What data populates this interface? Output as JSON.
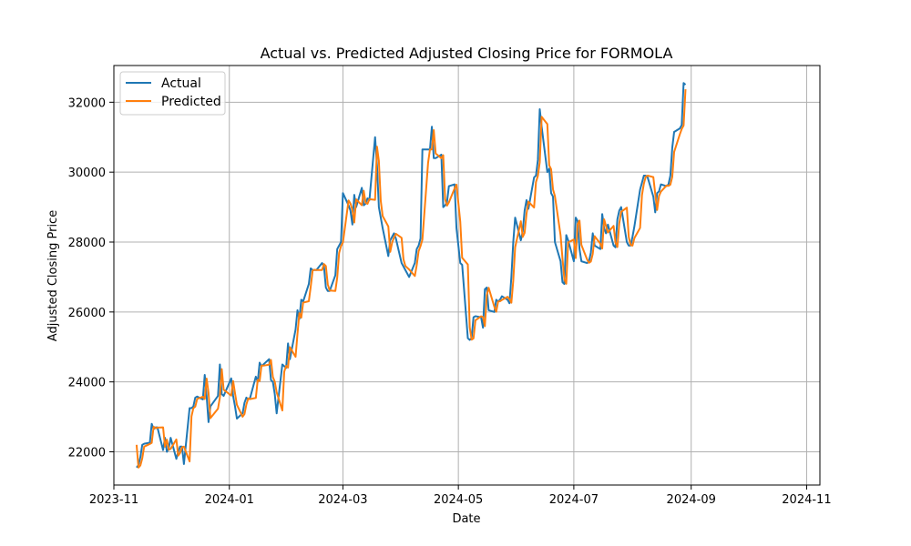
{
  "chart_data": {
    "type": "line",
    "title": "Actual vs. Predicted Adjusted Closing Price for FORMOLA",
    "xlabel": "Date",
    "ylabel": "Adjusted Closing Price",
    "xlim": [
      "2023-11-01",
      "2024-11-08"
    ],
    "ylim": [
      21050,
      33050
    ],
    "x_ticks": [
      "2023-11",
      "2024-01",
      "2024-03",
      "2024-05",
      "2024-07",
      "2024-09",
      "2024-11"
    ],
    "y_ticks": [
      22000,
      24000,
      26000,
      28000,
      30000,
      32000
    ],
    "grid": true,
    "legend_position": "top-left",
    "series": [
      {
        "name": "Actual",
        "color": "#1f77b4",
        "points": [
          [
            "2023-11-13",
            21550
          ],
          [
            "2023-11-14",
            21620
          ],
          [
            "2023-11-15",
            21850
          ],
          [
            "2023-11-16",
            22200
          ],
          [
            "2023-11-17",
            22230
          ],
          [
            "2023-11-20",
            22260
          ],
          [
            "2023-11-21",
            22800
          ],
          [
            "2023-11-22",
            22650
          ],
          [
            "2023-11-23",
            22700
          ],
          [
            "2023-11-24",
            22700
          ],
          [
            "2023-11-27",
            22050
          ],
          [
            "2023-11-28",
            22400
          ],
          [
            "2023-11-29",
            22000
          ],
          [
            "2023-11-30",
            22100
          ],
          [
            "2023-12-01",
            22400
          ],
          [
            "2023-12-04",
            21800
          ],
          [
            "2023-12-05",
            22000
          ],
          [
            "2023-12-06",
            22150
          ],
          [
            "2023-12-07",
            22150
          ],
          [
            "2023-12-08",
            21650
          ],
          [
            "2023-12-11",
            23250
          ],
          [
            "2023-12-12",
            23250
          ],
          [
            "2023-12-13",
            23300
          ],
          [
            "2023-12-14",
            23550
          ],
          [
            "2023-12-15",
            23580
          ],
          [
            "2023-12-18",
            23500
          ],
          [
            "2023-12-19",
            24200
          ],
          [
            "2023-12-20",
            23600
          ],
          [
            "2023-12-21",
            22850
          ],
          [
            "2023-12-22",
            23300
          ],
          [
            "2023-12-26",
            23600
          ],
          [
            "2023-12-27",
            24500
          ],
          [
            "2023-12-28",
            23650
          ],
          [
            "2023-12-29",
            23600
          ],
          [
            "2024-01-02",
            24100
          ],
          [
            "2024-01-03",
            23600
          ],
          [
            "2024-01-04",
            23300
          ],
          [
            "2024-01-05",
            22950
          ],
          [
            "2024-01-08",
            23100
          ],
          [
            "2024-01-09",
            23400
          ],
          [
            "2024-01-10",
            23550
          ],
          [
            "2024-01-11",
            23500
          ],
          [
            "2024-01-12",
            23550
          ],
          [
            "2024-01-15",
            24150
          ],
          [
            "2024-01-16",
            24000
          ],
          [
            "2024-01-17",
            24550
          ],
          [
            "2024-01-18",
            24450
          ],
          [
            "2024-01-19",
            24500
          ],
          [
            "2024-01-22",
            24650
          ],
          [
            "2024-01-23",
            24050
          ],
          [
            "2024-01-24",
            24000
          ],
          [
            "2024-01-25",
            23650
          ],
          [
            "2024-01-26",
            23100
          ],
          [
            "2024-01-29",
            24500
          ],
          [
            "2024-01-30",
            24450
          ],
          [
            "2024-01-31",
            24400
          ],
          [
            "2024-02-01",
            25100
          ],
          [
            "2024-02-02",
            24650
          ],
          [
            "2024-02-05",
            25500
          ],
          [
            "2024-02-06",
            26050
          ],
          [
            "2024-02-07",
            25800
          ],
          [
            "2024-02-08",
            26350
          ],
          [
            "2024-02-09",
            26300
          ],
          [
            "2024-02-12",
            26800
          ],
          [
            "2024-02-13",
            27250
          ],
          [
            "2024-02-14",
            27200
          ],
          [
            "2024-02-15",
            27200
          ],
          [
            "2024-02-16",
            27200
          ],
          [
            "2024-02-19",
            27400
          ],
          [
            "2024-02-20",
            27300
          ],
          [
            "2024-02-21",
            26700
          ],
          [
            "2024-02-22",
            26600
          ],
          [
            "2024-02-23",
            26600
          ],
          [
            "2024-02-26",
            27050
          ],
          [
            "2024-02-27",
            27800
          ],
          [
            "2024-02-28",
            27900
          ],
          [
            "2024-02-29",
            28000
          ],
          [
            "2024-03-01",
            29400
          ],
          [
            "2024-03-04",
            29050
          ],
          [
            "2024-03-05",
            28900
          ],
          [
            "2024-03-06",
            28500
          ],
          [
            "2024-03-07",
            29350
          ],
          [
            "2024-03-08",
            29000
          ],
          [
            "2024-03-11",
            29550
          ],
          [
            "2024-03-12",
            29050
          ],
          [
            "2024-03-13",
            29100
          ],
          [
            "2024-03-14",
            29250
          ],
          [
            "2024-03-15",
            29200
          ],
          [
            "2024-03-18",
            31000
          ],
          [
            "2024-03-19",
            30200
          ],
          [
            "2024-03-20",
            29000
          ],
          [
            "2024-03-21",
            28700
          ],
          [
            "2024-03-22",
            28400
          ],
          [
            "2024-03-25",
            27600
          ],
          [
            "2024-03-26",
            28050
          ],
          [
            "2024-03-27",
            28150
          ],
          [
            "2024-03-28",
            28250
          ],
          [
            "2024-03-29",
            28100
          ],
          [
            "2024-04-01",
            27400
          ],
          [
            "2024-04-02",
            27300
          ],
          [
            "2024-04-03",
            27200
          ],
          [
            "2024-04-05",
            27000
          ],
          [
            "2024-04-08",
            27400
          ],
          [
            "2024-04-09",
            27800
          ],
          [
            "2024-04-10",
            27900
          ],
          [
            "2024-04-11",
            28100
          ],
          [
            "2024-04-12",
            30650
          ],
          [
            "2024-04-15",
            30650
          ],
          [
            "2024-04-16",
            30650
          ],
          [
            "2024-04-17",
            31300
          ],
          [
            "2024-04-18",
            30400
          ],
          [
            "2024-04-19",
            30400
          ],
          [
            "2024-04-22",
            30500
          ],
          [
            "2024-04-23",
            29000
          ],
          [
            "2024-04-24",
            29050
          ],
          [
            "2024-04-25",
            29150
          ],
          [
            "2024-04-26",
            29600
          ],
          [
            "2024-04-29",
            29650
          ],
          [
            "2024-04-30",
            28400
          ],
          [
            "2024-05-02",
            27400
          ],
          [
            "2024-05-03",
            27350
          ],
          [
            "2024-05-06",
            25250
          ],
          [
            "2024-05-07",
            25200
          ],
          [
            "2024-05-08",
            25250
          ],
          [
            "2024-05-09",
            25850
          ],
          [
            "2024-05-10",
            25880
          ],
          [
            "2024-05-13",
            25850
          ],
          [
            "2024-05-14",
            25550
          ],
          [
            "2024-05-15",
            26650
          ],
          [
            "2024-05-16",
            26700
          ],
          [
            "2024-05-17",
            26050
          ],
          [
            "2024-05-20",
            26000
          ],
          [
            "2024-05-21",
            26350
          ],
          [
            "2024-05-22",
            26300
          ],
          [
            "2024-05-23",
            26350
          ],
          [
            "2024-05-24",
            26450
          ],
          [
            "2024-05-27",
            26350
          ],
          [
            "2024-05-28",
            26250
          ],
          [
            "2024-05-29",
            27000
          ],
          [
            "2024-05-30",
            28000
          ],
          [
            "2024-05-31",
            28700
          ],
          [
            "2024-06-03",
            28050
          ],
          [
            "2024-06-04",
            28300
          ],
          [
            "2024-06-05",
            28900
          ],
          [
            "2024-06-06",
            29200
          ],
          [
            "2024-06-07",
            28950
          ],
          [
            "2024-06-10",
            29850
          ],
          [
            "2024-06-11",
            29900
          ],
          [
            "2024-06-12",
            30350
          ],
          [
            "2024-06-13",
            31800
          ],
          [
            "2024-06-14",
            31300
          ],
          [
            "2024-06-17",
            30000
          ],
          [
            "2024-06-18",
            30100
          ],
          [
            "2024-06-19",
            29400
          ],
          [
            "2024-06-20",
            29300
          ],
          [
            "2024-06-21",
            28000
          ],
          [
            "2024-06-24",
            27450
          ],
          [
            "2024-06-25",
            26850
          ],
          [
            "2024-06-26",
            26800
          ],
          [
            "2024-06-27",
            28200
          ],
          [
            "2024-06-28",
            28050
          ],
          [
            "2024-07-01",
            27450
          ],
          [
            "2024-07-02",
            28700
          ],
          [
            "2024-07-03",
            28600
          ],
          [
            "2024-07-04",
            27800
          ],
          [
            "2024-07-05",
            27450
          ],
          [
            "2024-07-08",
            27400
          ],
          [
            "2024-07-09",
            27450
          ],
          [
            "2024-07-10",
            27700
          ],
          [
            "2024-07-11",
            28250
          ],
          [
            "2024-07-12",
            27900
          ],
          [
            "2024-07-15",
            27800
          ],
          [
            "2024-07-16",
            28800
          ],
          [
            "2024-07-17",
            28400
          ],
          [
            "2024-07-18",
            28250
          ],
          [
            "2024-07-19",
            28500
          ],
          [
            "2024-07-22",
            27900
          ],
          [
            "2024-07-23",
            27850
          ],
          [
            "2024-07-24",
            28650
          ],
          [
            "2024-07-25",
            28900
          ],
          [
            "2024-07-26",
            29000
          ],
          [
            "2024-07-29",
            28000
          ],
          [
            "2024-07-30",
            27900
          ],
          [
            "2024-07-31",
            27900
          ],
          [
            "2024-08-01",
            28150
          ],
          [
            "2024-08-02",
            28450
          ],
          [
            "2024-08-05",
            29500
          ],
          [
            "2024-08-06",
            29700
          ],
          [
            "2024-08-07",
            29900
          ],
          [
            "2024-08-08",
            29900
          ],
          [
            "2024-08-09",
            29850
          ],
          [
            "2024-08-12",
            29300
          ],
          [
            "2024-08-13",
            28850
          ],
          [
            "2024-08-14",
            29400
          ],
          [
            "2024-08-15",
            29450
          ],
          [
            "2024-08-16",
            29650
          ],
          [
            "2024-08-19",
            29600
          ],
          [
            "2024-08-20",
            29650
          ],
          [
            "2024-08-21",
            29900
          ],
          [
            "2024-08-22",
            30700
          ],
          [
            "2024-08-23",
            31150
          ],
          [
            "2024-08-26",
            31250
          ],
          [
            "2024-08-27",
            31350
          ],
          [
            "2024-08-28",
            32550
          ],
          [
            "2024-08-29",
            32500
          ]
        ]
      },
      {
        "name": "Predicted",
        "color": "#ff7f0e",
        "points": []
      }
    ]
  }
}
